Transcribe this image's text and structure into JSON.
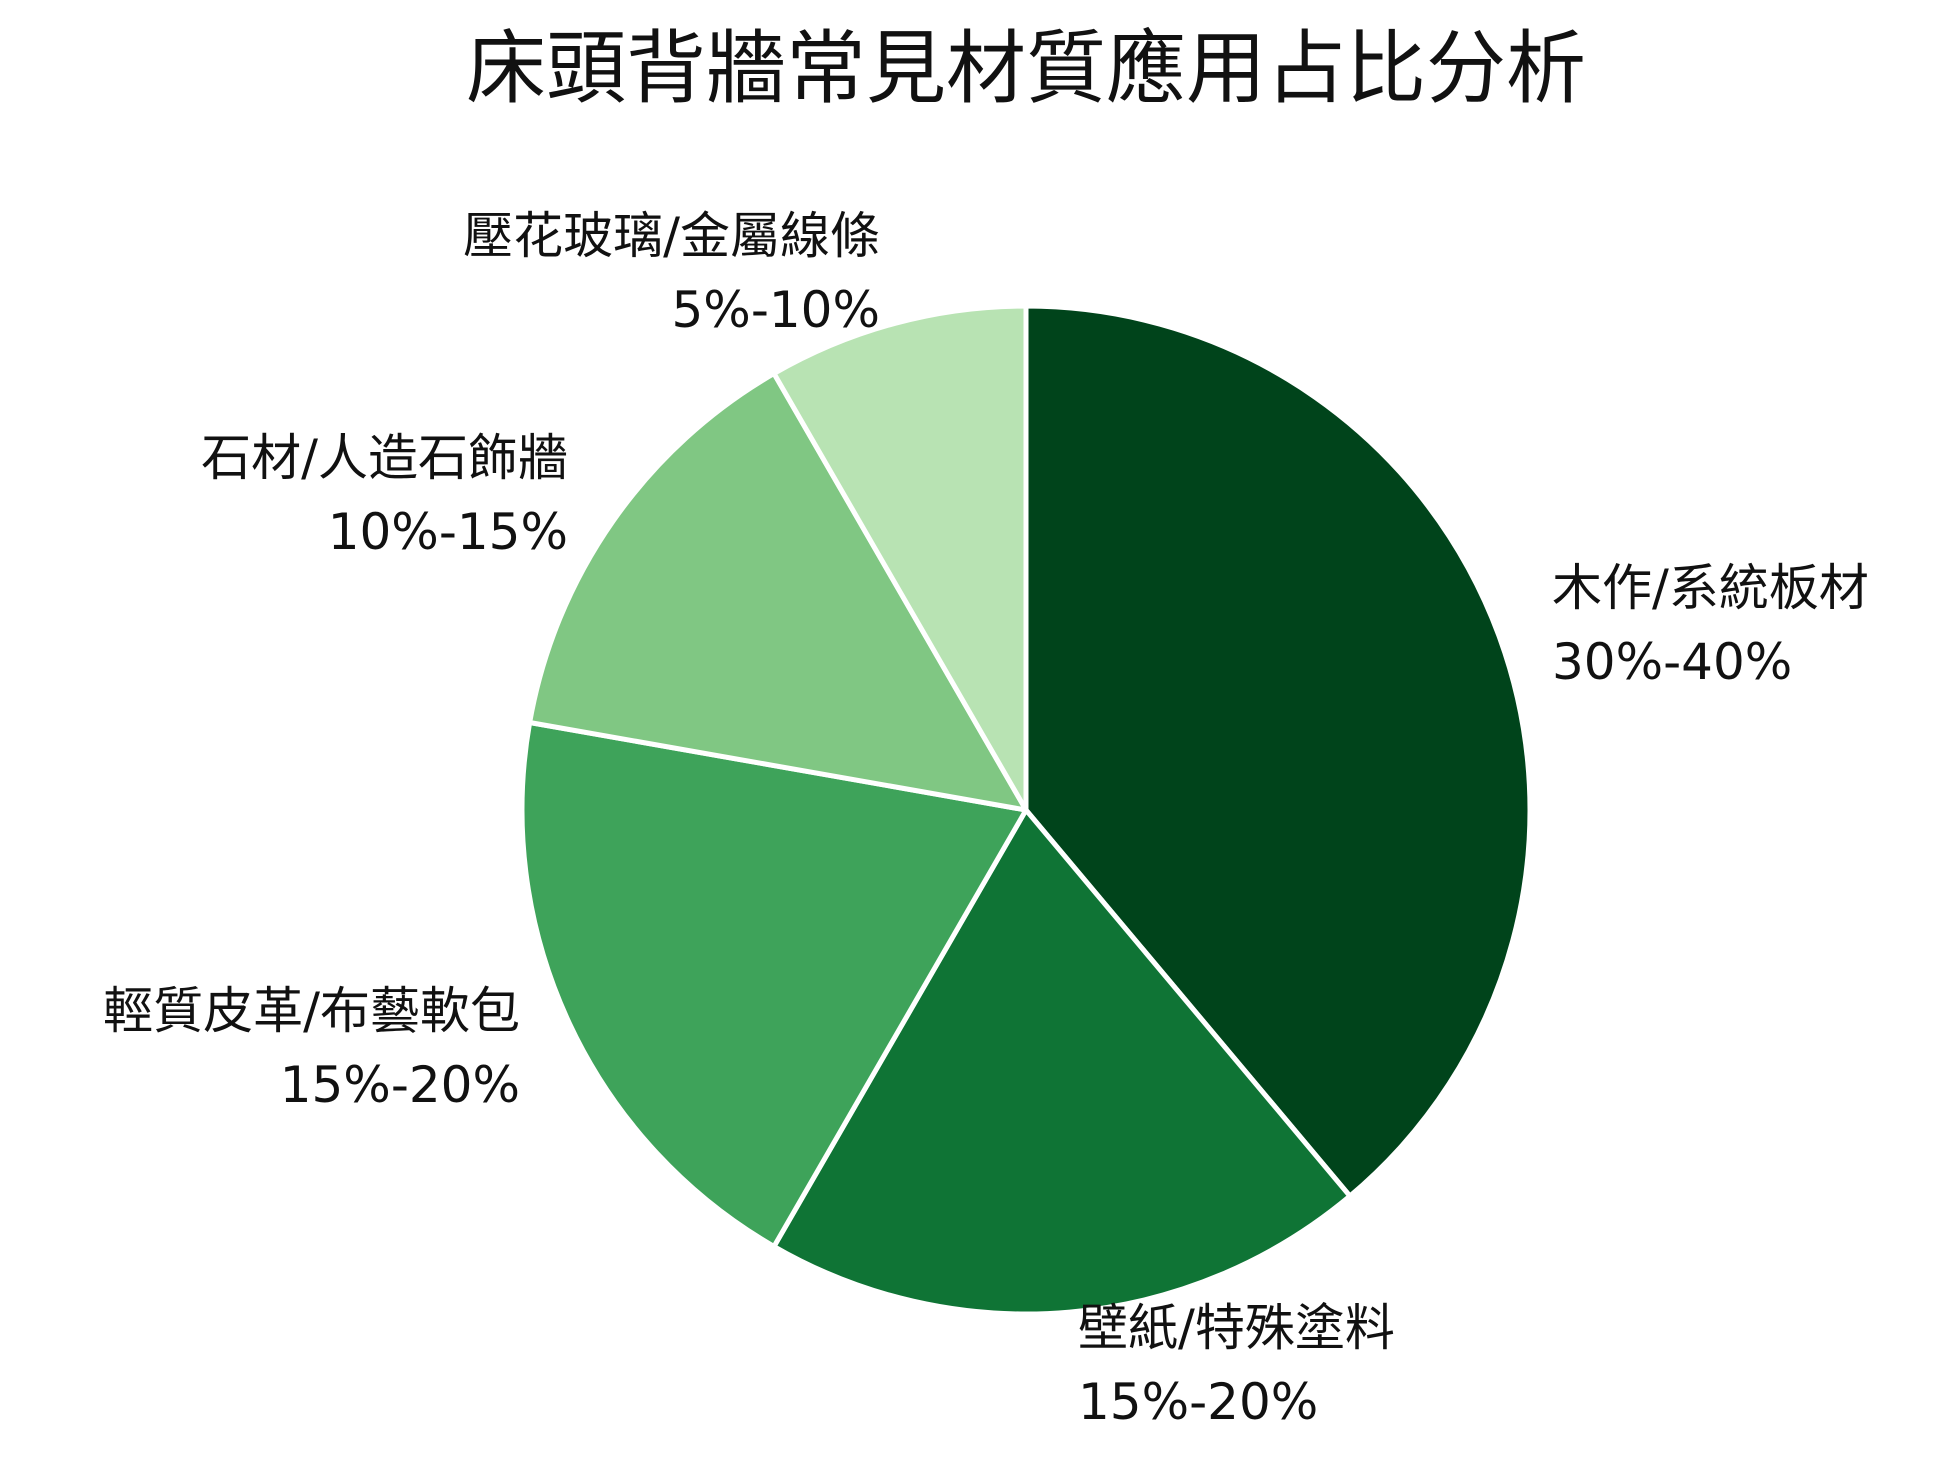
{
  "chart_data": {
    "type": "pie",
    "title": "床頭背牆常見材質應用占比分析",
    "start_angle_deg": 90,
    "direction": "clockwise",
    "slices": [
      {
        "label": "木作/系統板材",
        "range": "30%-40%",
        "value": 35,
        "color": "#00441b"
      },
      {
        "label": "壁紙/特殊塗料",
        "range": "15%-20%",
        "value": 17.5,
        "color": "#0f7435"
      },
      {
        "label": "輕質皮革/布藝軟包",
        "range": "15%-20%",
        "value": 17.5,
        "color": "#3ea35a"
      },
      {
        "label": "石材/人造石飾牆",
        "range": "10%-15%",
        "value": 12.5,
        "color": "#80c783"
      },
      {
        "label": "壓花玻璃/金屬線條",
        "range": "5%-10%",
        "value": 7.5,
        "color": "#b8e3b3"
      }
    ]
  }
}
